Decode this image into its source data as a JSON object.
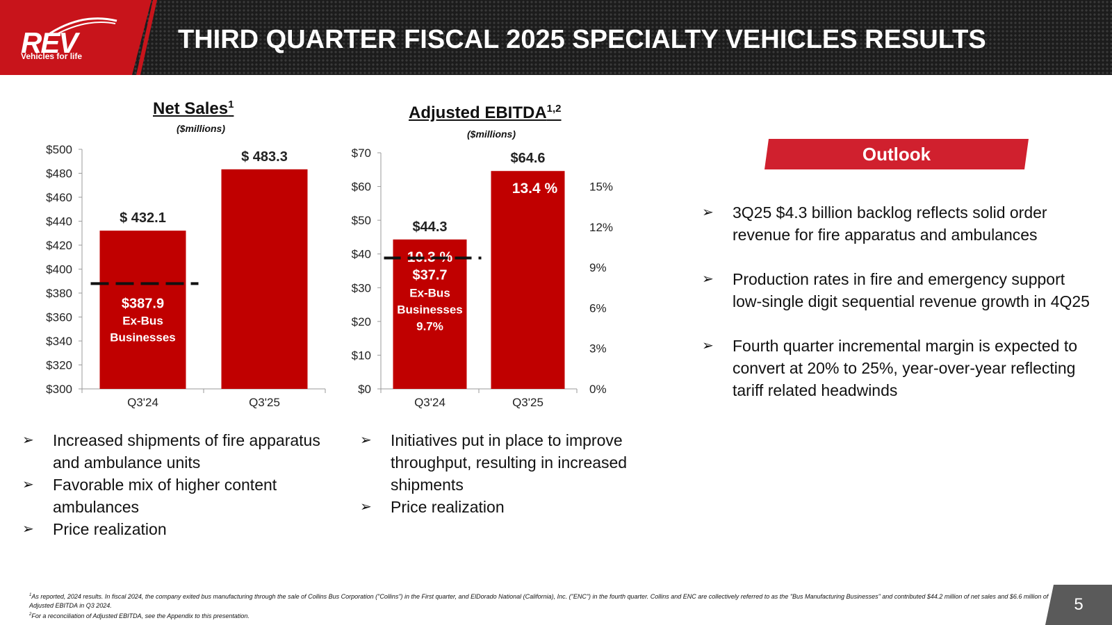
{
  "header": {
    "title": "THIRD QUARTER FISCAL 2025 SPECIALTY VEHICLES RESULTS",
    "logo_text": "REV",
    "logo_tagline": "Vehicles for life"
  },
  "colors": {
    "bar": "#c00000",
    "accent": "#d0202e",
    "header_bg": "#1c1c1c"
  },
  "chart_data": [
    {
      "type": "bar",
      "title": "Net Sales",
      "title_sup": "1",
      "subtitle": "($millions)",
      "categories": [
        "Q3'24",
        "Q3'25"
      ],
      "values": [
        432.1,
        483.3
      ],
      "value_labels": [
        "$ 432.1",
        "$ 483.3"
      ],
      "ylim": [
        300,
        500
      ],
      "yticks": [
        300,
        320,
        340,
        360,
        380,
        400,
        420,
        440,
        460,
        480,
        500
      ],
      "ytick_labels": [
        "$300",
        "$320",
        "$340",
        "$360",
        "$380",
        "$400",
        "$420",
        "$440",
        "$460",
        "$480",
        "$500"
      ],
      "reference_line": {
        "category": "Q3'24",
        "value": 387.9,
        "label_value": "$387.9",
        "label_lines": [
          "Ex-Bus",
          "Businesses"
        ]
      }
    },
    {
      "type": "bar",
      "title": "Adjusted EBITDA",
      "title_sup": "1,2",
      "subtitle": "($millions)",
      "categories": [
        "Q3'24",
        "Q3'25"
      ],
      "values": [
        44.3,
        64.6
      ],
      "value_labels": [
        "$44.3",
        "$64.6"
      ],
      "margins": [
        10.3,
        13.4
      ],
      "margin_labels": [
        "10.3 %",
        "13.4 %"
      ],
      "ylim": [
        0,
        70
      ],
      "yticks": [
        0,
        10,
        20,
        30,
        40,
        50,
        60,
        70
      ],
      "ytick_labels": [
        "$0",
        "$10",
        "$20",
        "$30",
        "$40",
        "$50",
        "$60",
        "$70"
      ],
      "y2lim": [
        0,
        17.5
      ],
      "y2ticks": [
        0,
        3,
        6,
        9,
        12,
        15
      ],
      "y2tick_labels": [
        "0%",
        "3%",
        "6%",
        "9%",
        "12%",
        "15%"
      ],
      "reference_line": {
        "category": "Q3'24",
        "margin": 9.7,
        "label_value": "$37.7",
        "label_lines": [
          "Ex-Bus",
          "Businesses",
          "9.7%"
        ]
      }
    }
  ],
  "left_bullets": [
    "Increased shipments of fire apparatus and ambulance units",
    "Favorable mix of higher content ambulances",
    "Price realization"
  ],
  "middle_bullets": [
    "Initiatives put in place to improve throughput, resulting in increased shipments",
    "Price realization"
  ],
  "outlook": {
    "title": "Outlook",
    "bullets": [
      "3Q25 $4.3 billion backlog reflects solid order revenue for fire apparatus and ambulances",
      "Production rates in fire and emergency support low-single digit sequential revenue growth in 4Q25",
      "Fourth quarter incremental margin is expected to convert at 20% to 25%, year-over-year reflecting tariff related headwinds"
    ]
  },
  "bullet_glyph": "➢",
  "footnotes": {
    "note1_marker": "1",
    "note1": "As reported, 2024 results. In fiscal 2024, the company exited bus manufacturing through the sale of Collins Bus Corporation (\"Collins\") in the First quarter, and ElDorado National (California), Inc. (\"ENC\") in the fourth quarter. Collins and ENC are collectively referred to as the \"Bus Manufacturing Businesses\" and contributed $44.2 million of net sales and $6.6 million of Adjusted EBITDA in Q3 2024.",
    "note2_marker": "2",
    "note2": "For a reconciliation of Adjusted EBITDA, see the Appendix to this presentation."
  },
  "page_number": "5"
}
